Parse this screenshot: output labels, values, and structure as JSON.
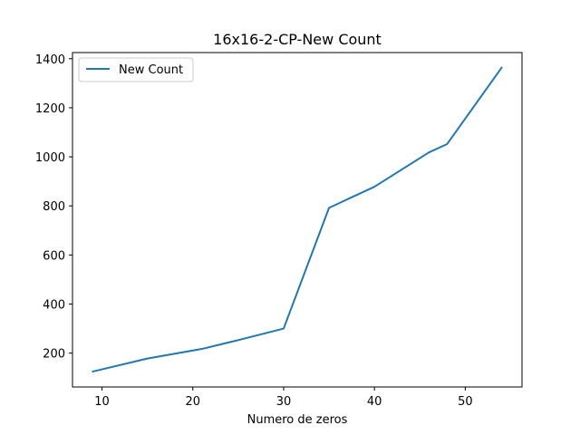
{
  "chart_data": {
    "type": "line",
    "title": "16x16-2-CP-New Count",
    "xlabel": "Numero de zeros",
    "ylabel": "",
    "xlim": [
      6.75,
      56.25
    ],
    "ylim": [
      62,
      1425
    ],
    "xticks": [
      10,
      20,
      30,
      40,
      50
    ],
    "yticks": [
      200,
      400,
      600,
      800,
      1000,
      1200,
      1400
    ],
    "legend_position": "upper-left",
    "series": [
      {
        "name": "New Count",
        "color": "#1f77b4",
        "x": [
          9,
          15,
          21,
          25,
          30,
          35,
          40,
          46,
          48,
          54
        ],
        "y": [
          125,
          178,
          217,
          253,
          300,
          792,
          878,
          1018,
          1052,
          1363
        ]
      }
    ]
  }
}
